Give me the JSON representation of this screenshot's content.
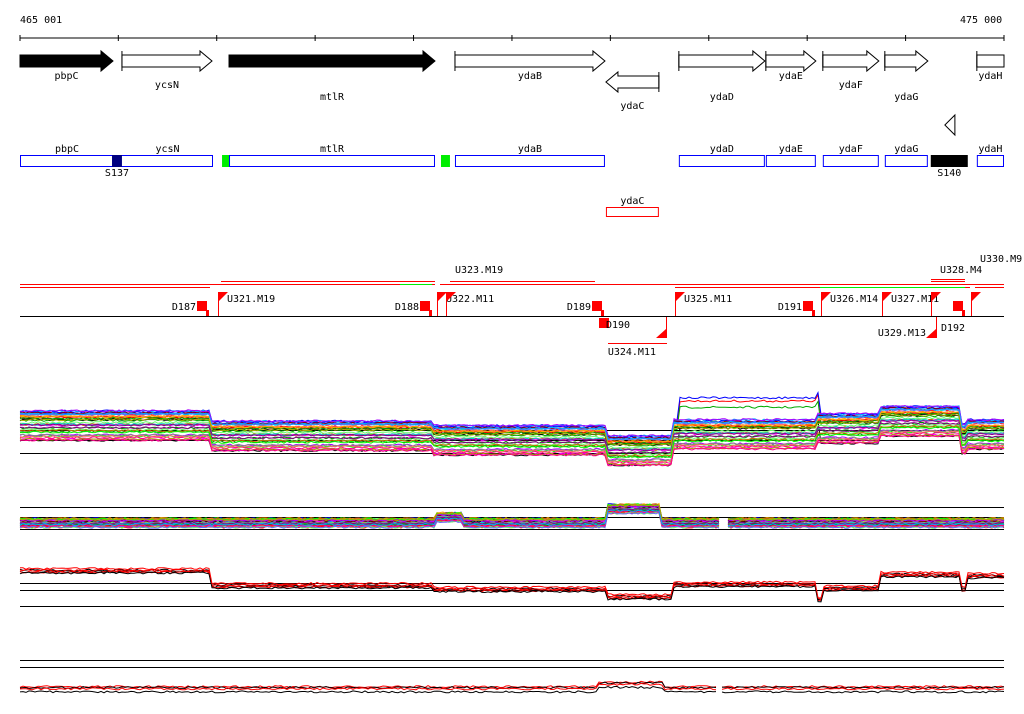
{
  "axis": {
    "start_label": "465 001",
    "end_label": "475 000",
    "start": 465001,
    "end": 475000,
    "tick_step": 1000
  },
  "genes": [
    {
      "name": "pbpC",
      "start": 465001,
      "end": 465946,
      "strand": "+",
      "filled": true,
      "label_row": 0
    },
    {
      "name": "ycsN",
      "start": 466037,
      "end": 466952,
      "strand": "+",
      "filled": false,
      "label_row": 1
    },
    {
      "name": "mtlR",
      "start": 467125,
      "end": 469218,
      "strand": "+",
      "filled": true,
      "label_row": 2
    },
    {
      "name": "ydaB",
      "start": 469421,
      "end": 470945,
      "strand": "+",
      "filled": false,
      "label_row": 0
    },
    {
      "name": "ydaC",
      "start": 470955,
      "end": 471493,
      "strand": "-",
      "filled": false,
      "label_row": 3
    },
    {
      "name": "ydaD",
      "start": 471696,
      "end": 472570,
      "strand": "+",
      "filled": false,
      "label_row": 2
    },
    {
      "name": "ydaE",
      "start": 472580,
      "end": 473088,
      "strand": "+",
      "filled": false,
      "label_row": 0
    },
    {
      "name": "ydaF",
      "start": 473159,
      "end": 473728,
      "strand": "+",
      "filled": false,
      "label_row": 1
    },
    {
      "name": "ydaG",
      "start": 473789,
      "end": 474226,
      "strand": "+",
      "filled": false,
      "label_row": 2
    },
    {
      "name": "ydaH",
      "start": 474724,
      "end": 475000,
      "strand": "+",
      "filled": false,
      "label_row": 0,
      "truncated": true
    }
  ],
  "small_feature": {
    "start": 474399,
    "end": 474501,
    "strand": "-"
  },
  "annotation_boxes": [
    {
      "name": "pbpC",
      "start": 465001,
      "end": 466952,
      "label_at": 465946
    },
    {
      "name": "ycsN",
      "start": 465001,
      "end": 466952,
      "label_at": 466500,
      "label_only": true
    },
    {
      "name": "mtlR",
      "start": 467125,
      "end": 469218
    },
    {
      "name": "ydaB",
      "start": 469421,
      "end": 470945
    },
    {
      "name": "ydaD",
      "start": 471696,
      "end": 472570
    },
    {
      "name": "ydaE",
      "start": 472580,
      "end": 473088
    },
    {
      "name": "ydaF",
      "start": 473159,
      "end": 473728
    },
    {
      "name": "ydaG",
      "start": 473789,
      "end": 474226
    },
    {
      "name": "ydaH",
      "start": 474724,
      "end": 475000
    }
  ],
  "red_box": {
    "name": "ydaC",
    "start": 470955,
    "end": 471493
  },
  "markers": [
    {
      "label": "S137",
      "start": 465936,
      "end": 466037,
      "color": "#000080"
    },
    {
      "label": "",
      "start": 467054,
      "end": 467125,
      "color": "#00ee00"
    },
    {
      "label": "",
      "start": 469279,
      "end": 469370,
      "color": "#00ee00"
    },
    {
      "label": "S140",
      "start": 474256,
      "end": 474632,
      "color": "#000000"
    }
  ],
  "segments": [
    {
      "label": "D187",
      "pos": 466900,
      "type": "down",
      "side": "above"
    },
    {
      "label": "U321.M19",
      "pos": 467017,
      "type": "up",
      "side": "above"
    },
    {
      "label": "D188",
      "pos": 469170,
      "type": "down",
      "side": "above"
    },
    {
      "label": "U322.M11",
      "pos": 469238,
      "type": "up",
      "side": "above"
    },
    {
      "label": "U323.M19",
      "pos": 469330,
      "type": "up",
      "side": "above"
    },
    {
      "label": "D189",
      "pos": 470920,
      "type": "down",
      "side": "above"
    },
    {
      "label": "D190",
      "pos": 470985,
      "type": "down",
      "side": "below"
    },
    {
      "label": "U324.M11",
      "pos": 471570,
      "type": "up",
      "side": "below"
    },
    {
      "label": "U325.M11",
      "pos": 471655,
      "type": "up",
      "side": "above"
    },
    {
      "label": "D191",
      "pos": 473058,
      "type": "down",
      "side": "above"
    },
    {
      "label": "U326.M14",
      "pos": 473139,
      "type": "up",
      "side": "above"
    },
    {
      "label": "U327.M11",
      "pos": 473760,
      "type": "up",
      "side": "above"
    },
    {
      "label": "U328.M4",
      "pos": 474256,
      "type": "up",
      "side": "above"
    },
    {
      "label": "D192",
      "pos": 474580,
      "type": "down",
      "side": "above2"
    },
    {
      "label": "U329.M13",
      "pos": 474307,
      "type": "up",
      "side": "below"
    },
    {
      "label": "U330.M9",
      "pos": 474663,
      "type": "up",
      "side": "above"
    }
  ],
  "expression_panels": [
    {
      "name": "all-conditions",
      "series": 40,
      "breaks": [
        465001,
        466937,
        469200,
        470955,
        471620,
        473080,
        473728,
        474560,
        474620,
        475000
      ],
      "levels": [
        6.0,
        4.6,
        4.0,
        2.6,
        4.8,
        5.6,
        6.6,
        4.2,
        4.8
      ],
      "spread": 2.2,
      "gap": null
    },
    {
      "name": "all-conditions-2",
      "series": 40,
      "breaks": [
        465001,
        469210,
        469500,
        470955,
        471500,
        475000
      ],
      "levels": [
        4.0,
        5.2,
        4.0,
        7.0,
        4.0
      ],
      "spread": 1.0,
      "gap": 472150
    },
    {
      "name": "selected-conditions",
      "series": 6,
      "breaks": [
        465001,
        466937,
        469200,
        470955,
        471620,
        473080,
        473160,
        473728,
        474560,
        474630,
        475000
      ],
      "levels": [
        8.0,
        5.6,
        5.0,
        3.8,
        5.8,
        3.4,
        5.2,
        7.4,
        5.0,
        7.2
      ],
      "spread": 0.8,
      "gap": null
    },
    {
      "name": "selected-conditions-2",
      "series": 4,
      "breaks": [
        465001,
        470870,
        471550,
        475000
      ],
      "levels": [
        2.4,
        3.4,
        2.4
      ],
      "spread": 0.7,
      "gap": 472100
    }
  ],
  "colors": {
    "gene_box": "#0000ff",
    "flag": "#ff0000",
    "green": "#00ee00"
  }
}
